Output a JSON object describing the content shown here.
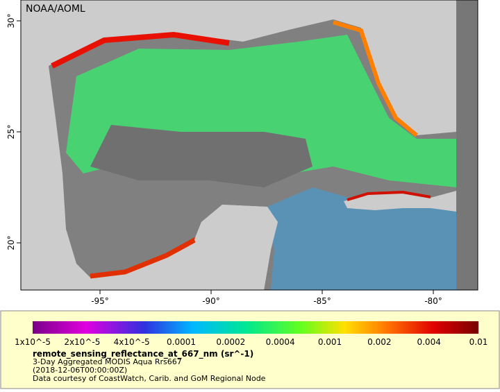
{
  "map": {
    "credit": "NOAA/AOML",
    "x_tick_labels": [
      "-95°",
      "-90°",
      "-85°",
      "-80°"
    ],
    "y_tick_labels": [
      "30°",
      "25°",
      "20°"
    ],
    "colorbar_labels": [
      "1x10^-5",
      "2x10^-5",
      "4x10^-5",
      "0.0001",
      "0.0002",
      "0.0004",
      "0.001",
      "0.002",
      "0.004",
      "0.01"
    ],
    "legend": {
      "variable": "remote_sensing_reflectance_at_667_nm (sr^-1)",
      "lines": [
        "3-Day Aggregated MODIS Aqua Rrs667",
        "(2018-12-06T00:00:00Z)",
        "Data courtesy of CoastWatch, Carib. and GoM Regional Node"
      ]
    }
  }
}
